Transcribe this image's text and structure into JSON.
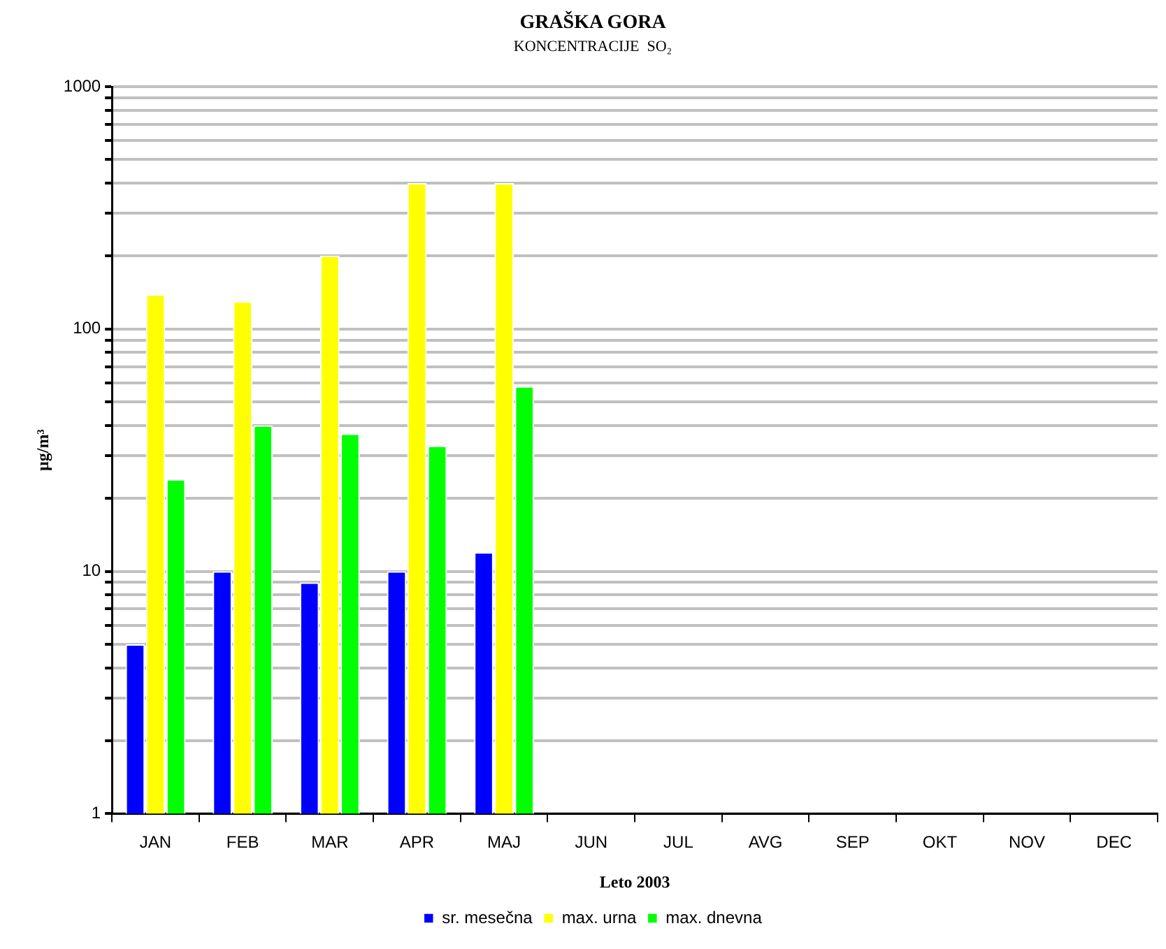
{
  "chart_data": {
    "type": "bar",
    "title": "GRAŠKA GORA",
    "subtitle": "KONCENTRACIJE  SO₂",
    "xlabel": "Leto 2003",
    "ylabel": "µg/m³",
    "categories": [
      "JAN",
      "FEB",
      "MAR",
      "APR",
      "MAJ",
      "JUN",
      "JUL",
      "AVG",
      "SEP",
      "OKT",
      "NOV",
      "DEC"
    ],
    "series": [
      {
        "name": "sr. mesečna",
        "color": "#0000ff",
        "values": [
          5,
          10,
          9,
          10,
          12,
          null,
          null,
          null,
          null,
          null,
          null,
          null
        ]
      },
      {
        "name": "max. urna",
        "color": "#ffff00",
        "values": [
          139,
          130,
          201,
          400,
          400,
          null,
          null,
          null,
          null,
          null,
          null,
          null
        ]
      },
      {
        "name": "max. dnevna",
        "color": "#00ff00",
        "values": [
          24,
          40,
          37,
          33,
          58,
          null,
          null,
          null,
          null,
          null,
          null,
          null
        ]
      }
    ],
    "log": "y",
    "ylim": [
      1,
      1000
    ],
    "yticks": [
      1,
      {
        "value": 2,
        "label": null
      },
      {
        "value": 3,
        "label": null
      },
      {
        "value": 4,
        "label": null
      },
      {
        "value": 5,
        "label": null
      },
      {
        "value": 6,
        "label": null
      },
      {
        "value": 7,
        "label": null
      },
      {
        "value": 8,
        "label": null
      },
      {
        "value": 9,
        "label": null
      },
      10,
      {
        "value": 20,
        "label": null
      },
      {
        "value": 30,
        "label": null
      },
      {
        "value": 40,
        "label": null
      },
      {
        "value": 50,
        "label": null
      },
      {
        "value": 60,
        "label": null
      },
      {
        "value": 70,
        "label": null
      },
      {
        "value": 80,
        "label": null
      },
      {
        "value": 90,
        "label": null
      },
      100,
      {
        "value": 200,
        "label": null
      },
      {
        "value": 300,
        "label": null
      },
      {
        "value": 400,
        "label": null
      },
      {
        "value": 500,
        "label": null
      },
      {
        "value": 600,
        "label": null
      },
      {
        "value": 700,
        "label": null
      },
      {
        "value": 800,
        "label": null
      },
      {
        "value": 900,
        "label": null
      },
      1000
    ],
    "grid": "y",
    "legend": "bottom"
  }
}
